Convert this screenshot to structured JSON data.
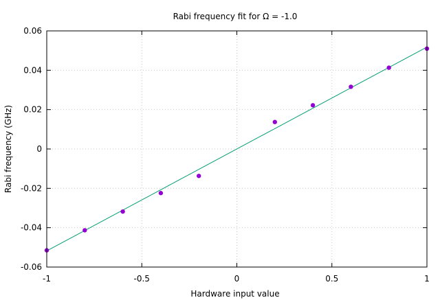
{
  "chart_data": {
    "type": "scatter",
    "title": "Rabi frequency fit for Ω = -1.0",
    "xlabel": "Hardware input value",
    "ylabel": "Rabi frequency (GHz)",
    "xlim": [
      -1,
      1
    ],
    "ylim": [
      -0.06,
      0.06
    ],
    "grid": true,
    "x_ticks": [
      -1,
      -0.5,
      0,
      0.5,
      1
    ],
    "x_tick_labels": [
      "-1",
      "-0.5",
      "0",
      "0.5",
      "1"
    ],
    "y_ticks": [
      -0.06,
      -0.04,
      -0.02,
      0,
      0.02,
      0.04,
      0.06
    ],
    "y_tick_labels": [
      "-0.06",
      "-0.04",
      "-0.02",
      "0",
      "0.02",
      "0.04",
      "0.06"
    ],
    "series": [
      {
        "kind": "points",
        "color": "#9400d3",
        "x": [
          -1.0,
          -0.8,
          -0.6,
          -0.4,
          -0.2,
          0.2,
          0.4,
          0.6,
          0.8,
          1.0
        ],
        "y": [
          -0.0515,
          -0.0413,
          -0.0318,
          -0.0224,
          -0.0137,
          0.0137,
          0.0222,
          0.0316,
          0.0413,
          0.051
        ]
      },
      {
        "kind": "fit-line",
        "color": "#009e73",
        "x": [
          -1.0,
          1.0
        ],
        "y": [
          -0.0518,
          0.0518
        ]
      }
    ]
  }
}
